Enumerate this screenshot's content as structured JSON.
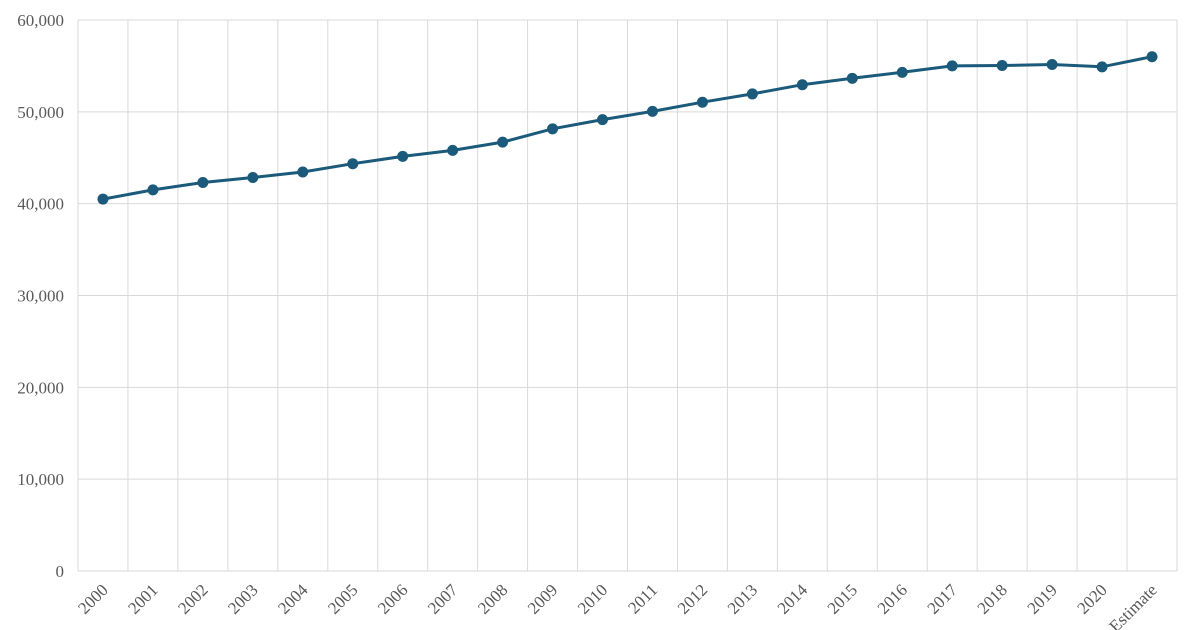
{
  "chart_data": {
    "type": "line",
    "title": "",
    "xlabel": "",
    "ylabel": "",
    "ylim": [
      0,
      60000
    ],
    "yticks": [
      "0",
      "10,000",
      "20,000",
      "30,000",
      "40,000",
      "50,000",
      "60,000"
    ],
    "grid": true,
    "legend": "none",
    "line_color": "#1b5a7a",
    "categories": [
      "2000",
      "2001",
      "2002",
      "2003",
      "2004",
      "2005",
      "2006",
      "2007",
      "2008",
      "2009",
      "2010",
      "2011",
      "2012",
      "2013",
      "2014",
      "2015",
      "2016",
      "2017",
      "2018",
      "2019",
      "2020",
      "Estimate"
    ],
    "values": [
      40500,
      41500,
      42300,
      42850,
      43450,
      44350,
      45150,
      45800,
      46700,
      48150,
      49150,
      50050,
      51050,
      51950,
      52950,
      53650,
      54300,
      55000,
      55050,
      55150,
      54900,
      56000
    ]
  }
}
